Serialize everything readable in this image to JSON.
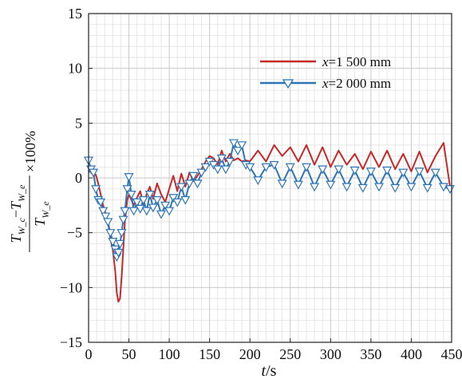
{
  "chart_data": {
    "type": "line",
    "title": "",
    "xlabel": "t/s",
    "xlabel_var": "t",
    "xlabel_unit": "/s",
    "ylabel_parts": {
      "num_a": "T",
      "num_a_sub": "W_c",
      "minus": "−",
      "num_b": "T",
      "num_b_sub": "W_e",
      "den": "T",
      "den_sub": "W_e",
      "suffix": "×100%"
    },
    "xlim": [
      0,
      450
    ],
    "ylim": [
      -15,
      15
    ],
    "x_ticks": [
      0,
      50,
      100,
      150,
      200,
      250,
      300,
      350,
      400,
      450
    ],
    "y_ticks": [
      15,
      10,
      5,
      0,
      -5,
      -10,
      -15
    ],
    "grid": true,
    "legend_position": "top-right",
    "series": [
      {
        "name_var": "x",
        "name_rest": "=1 500 mm",
        "color": "#c62828",
        "marker": "none",
        "x": [
          0,
          3,
          6,
          9,
          12,
          15,
          18,
          21,
          24,
          27,
          30,
          33,
          35,
          37,
          39,
          41,
          43,
          45,
          48,
          50,
          53,
          56,
          60,
          64,
          68,
          72,
          76,
          80,
          85,
          90,
          95,
          100,
          105,
          110,
          115,
          120,
          125,
          130,
          135,
          140,
          145,
          150,
          155,
          160,
          165,
          170,
          175,
          180,
          185,
          190,
          195,
          200,
          210,
          220,
          230,
          240,
          250,
          260,
          270,
          280,
          290,
          300,
          310,
          320,
          330,
          340,
          350,
          360,
          370,
          380,
          390,
          400,
          410,
          420,
          430,
          440,
          448
        ],
        "y": [
          0.5,
          0.8,
          0.2,
          0.3,
          -0.5,
          -1.5,
          -2.5,
          -3.2,
          -4,
          -5.5,
          -6.5,
          -8.5,
          -10.5,
          -11.3,
          -11,
          -9,
          -6.5,
          -4,
          -2,
          -1.5,
          -2,
          -2.5,
          -1.8,
          -1.2,
          -2.4,
          -1.5,
          -0.8,
          -1.9,
          -0.5,
          -1.5,
          -2.2,
          -1,
          0.2,
          -1.2,
          0.4,
          -0.8,
          0.5,
          -0.3,
          0.2,
          0.8,
          1.5,
          2,
          1.8,
          1.2,
          2.5,
          1.5,
          2.2,
          1.6,
          1.8,
          1.5,
          1.6,
          1.5,
          2.5,
          1.5,
          3,
          2,
          2.8,
          1.5,
          3,
          1.2,
          2.8,
          1,
          2.5,
          1.2,
          2.2,
          0.8,
          2.4,
          1,
          2.5,
          0.8,
          2.2,
          0.6,
          2.4,
          0.5,
          2,
          3.2,
          -0.8
        ]
      },
      {
        "name_var": "x",
        "name_rest": "=2 000 mm",
        "color": "#2e75b6",
        "marker": "triangle-down",
        "x": [
          0,
          3,
          6,
          9,
          12,
          15,
          18,
          21,
          24,
          27,
          30,
          33,
          35,
          37,
          39,
          41,
          43,
          45,
          48,
          50,
          53,
          56,
          60,
          64,
          68,
          72,
          76,
          80,
          85,
          90,
          95,
          100,
          105,
          110,
          115,
          120,
          125,
          130,
          135,
          140,
          145,
          150,
          155,
          160,
          165,
          170,
          175,
          180,
          185,
          190,
          195,
          200,
          210,
          220,
          230,
          240,
          250,
          260,
          270,
          280,
          290,
          300,
          310,
          320,
          330,
          340,
          350,
          360,
          370,
          380,
          390,
          400,
          410,
          420,
          430,
          440,
          448
        ],
        "y": [
          1.6,
          0.8,
          0.5,
          -1,
          -2,
          -2.2,
          -3,
          -3.5,
          -4,
          -5,
          -5.8,
          -6.5,
          -7.2,
          -6.8,
          -6,
          -5,
          -3.8,
          -3,
          -1,
          0.1,
          -1.5,
          -3,
          -2.2,
          -2.8,
          -2,
          -3,
          -1.5,
          -2.7,
          -2,
          -3.3,
          -2.5,
          -3,
          -1.8,
          -2.2,
          -0.8,
          -2,
          -0.5,
          0.2,
          -0.5,
          0.5,
          1,
          1.5,
          1.2,
          0.8,
          1.8,
          0.8,
          1.5,
          3.2,
          2.5,
          3,
          1.2,
          1,
          -0.2,
          1,
          1.2,
          -0.5,
          1,
          -0.6,
          1,
          -0.8,
          0.8,
          -0.6,
          0.8,
          -0.8,
          0.7,
          -0.9,
          0.6,
          -0.8,
          0.7,
          -0.9,
          0.5,
          -0.8,
          0.6,
          -0.9,
          0.5,
          -0.8,
          -1
        ]
      }
    ]
  }
}
